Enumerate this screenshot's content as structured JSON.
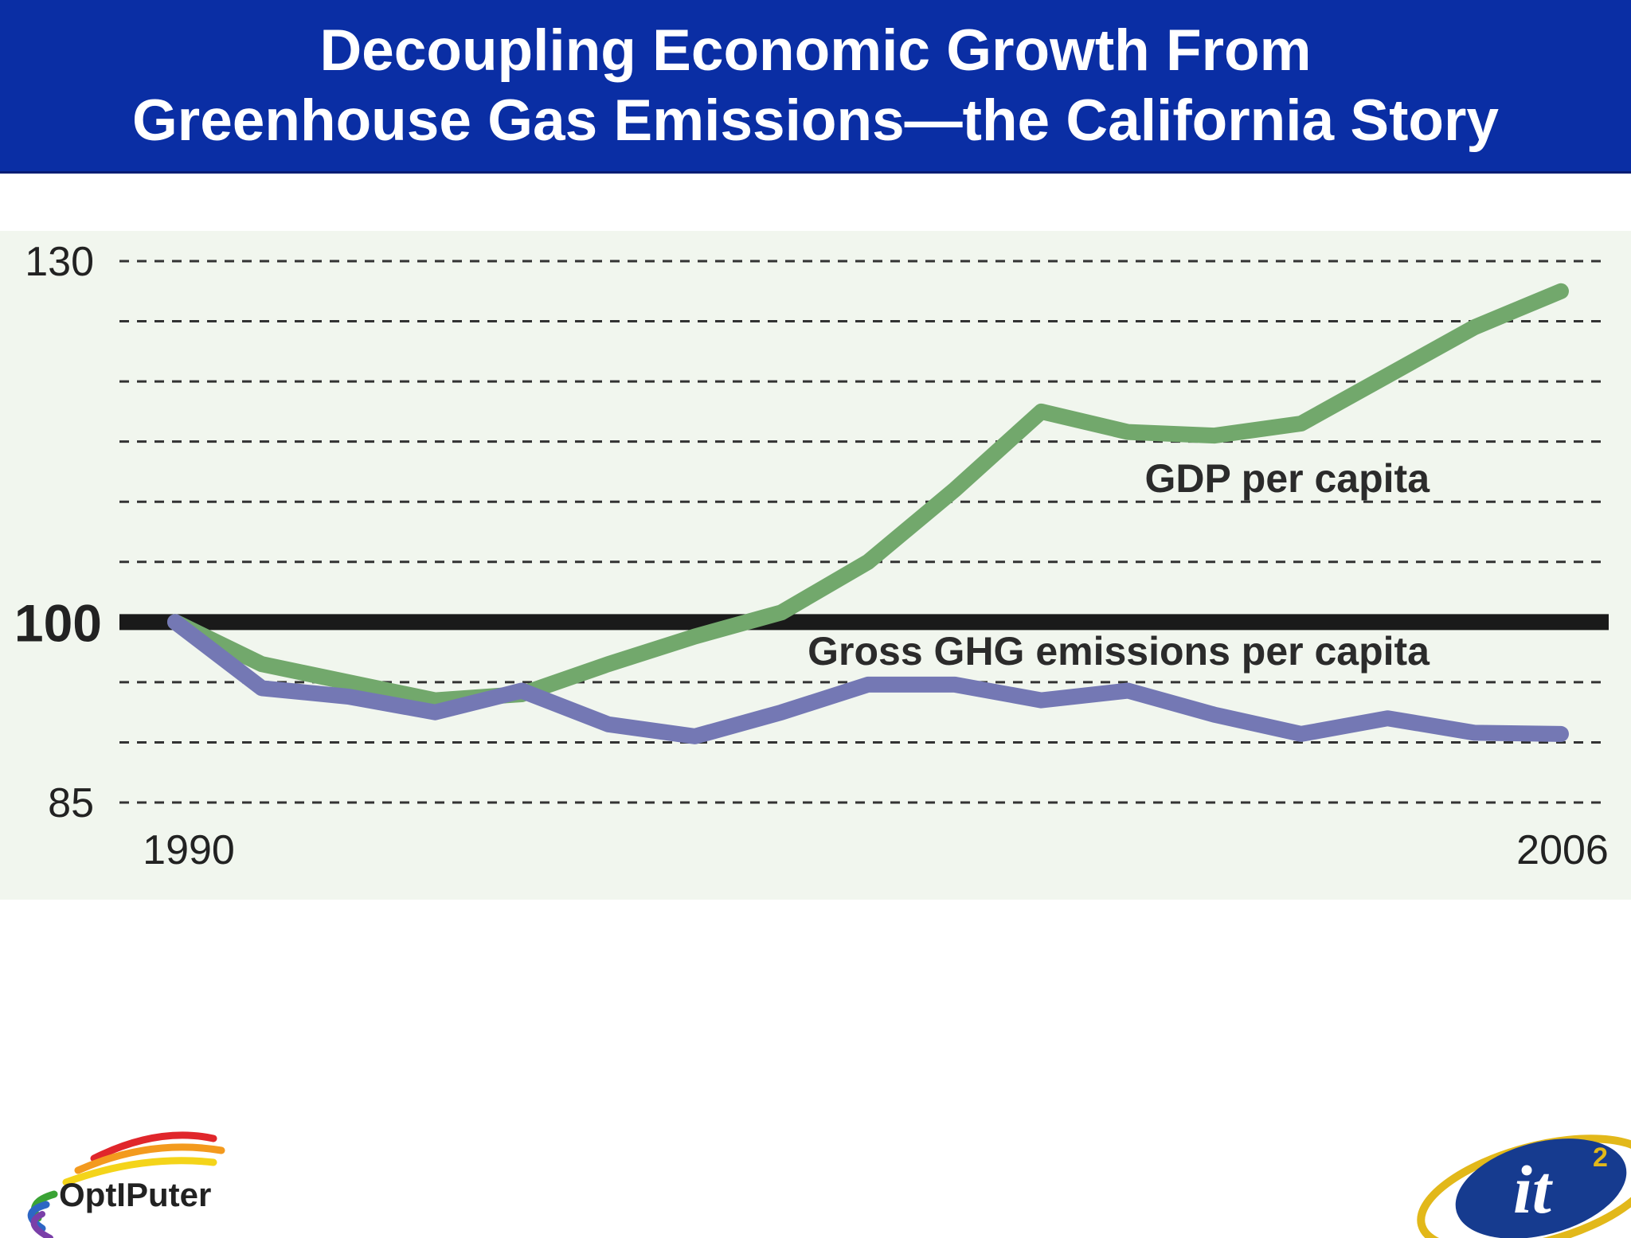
{
  "header": {
    "title_line1": "Decoupling Economic Growth From",
    "title_line2": "Greenhouse Gas Emissions—the California Story"
  },
  "chart_data": {
    "type": "line",
    "title": "Decoupling Economic Growth From Greenhouse Gas Emissions—the California Story",
    "xlabel": "",
    "ylabel": "",
    "x": [
      1990,
      1991,
      1992,
      1993,
      1994,
      1995,
      1996,
      1997,
      1998,
      1999,
      2000,
      2001,
      2002,
      2003,
      2004,
      2005,
      2006
    ],
    "ylim": [
      85,
      130
    ],
    "y_tick_labels": [
      "130",
      "100",
      "85"
    ],
    "x_tick_labels": [
      "1990",
      "2006"
    ],
    "gridlines": [
      85,
      90,
      95,
      105,
      110,
      115,
      120,
      125,
      130
    ],
    "baseline": 100,
    "series": [
      {
        "name": "GDP per capita",
        "color": "#72a86c",
        "values": [
          100,
          96.5,
          95.0,
          93.5,
          94.0,
          96.5,
          98.8,
          100.8,
          105.0,
          111.0,
          117.5,
          115.8,
          115.5,
          116.5,
          120.5,
          124.5,
          127.5
        ]
      },
      {
        "name": "Gross GHG emissions per capita",
        "color": "#7478b4",
        "values": [
          100,
          94.5,
          93.8,
          92.5,
          94.3,
          91.5,
          90.5,
          92.5,
          94.8,
          94.8,
          93.5,
          94.3,
          92.3,
          90.7,
          92.0,
          90.8,
          90.7
        ]
      }
    ],
    "annotations": [
      "GDP per capita",
      "Gross GHG emissions per capita"
    ]
  },
  "logos": {
    "left": "OptIPuter",
    "right": "it2"
  }
}
